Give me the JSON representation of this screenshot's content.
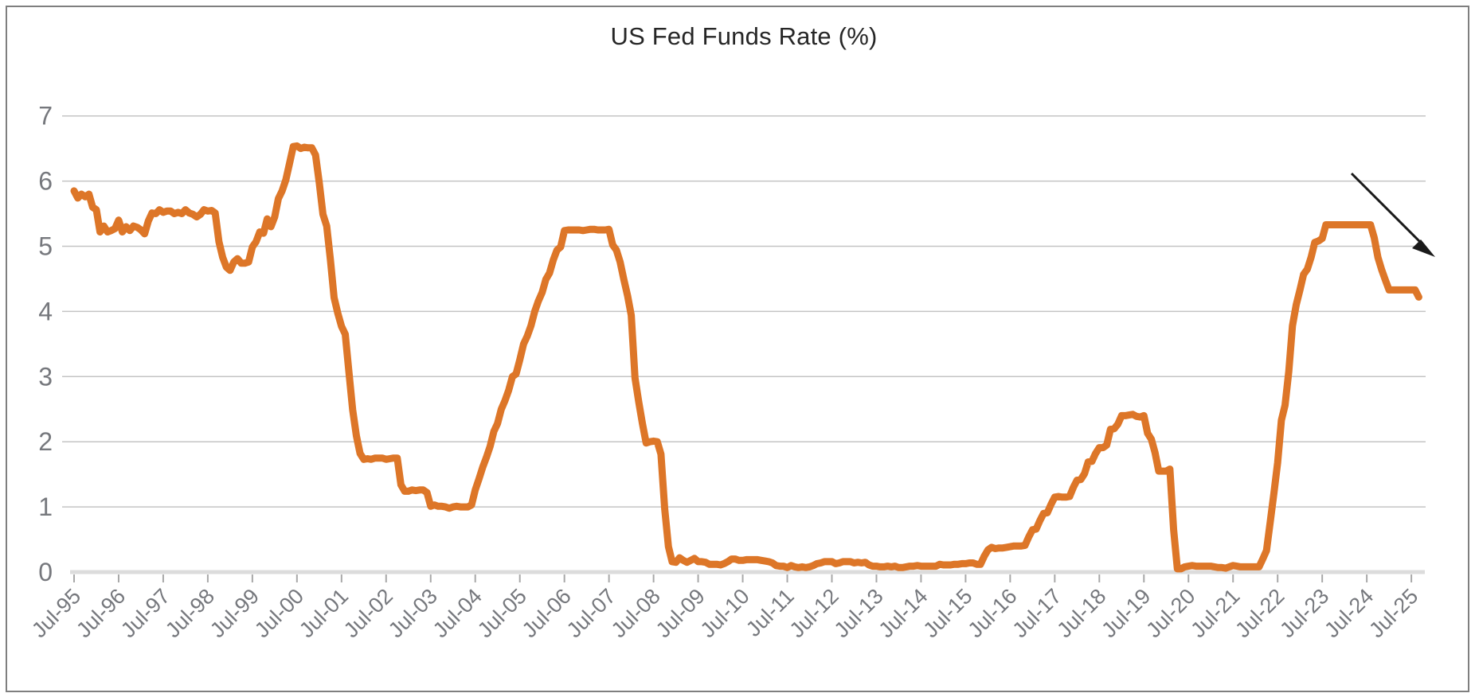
{
  "frame": {
    "background_color": "#FFFFFF",
    "border_color": "#7F7F7F"
  },
  "chart_data": {
    "type": "line",
    "title": "US Fed Funds Rate (%)",
    "xlabel": "",
    "ylabel": "",
    "legend": "none",
    "grid": "horizontal",
    "ylim": [
      0,
      7
    ],
    "y_ticks": [
      0,
      1,
      2,
      3,
      4,
      5,
      6,
      7
    ],
    "x_range": [
      "Jul-1995",
      "Sep-2025"
    ],
    "x_tick_labels": [
      "Jul-95",
      "Jul-96",
      "Jul-97",
      "Jul-98",
      "Jul-99",
      "Jul-00",
      "Jul-01",
      "Jul-02",
      "Jul-03",
      "Jul-04",
      "Jul-05",
      "Jul-06",
      "Jul-07",
      "Jul-08",
      "Jul-09",
      "Jul-10",
      "Jul-11",
      "Jul-12",
      "Jul-13",
      "Jul-14",
      "Jul-15",
      "Jul-16",
      "Jul-17",
      "Jul-18",
      "Jul-19",
      "Jul-20",
      "Jul-21",
      "Jul-22",
      "Jul-23",
      "Jul-24",
      "Jul-25"
    ],
    "colors": {
      "line": "#DD7628",
      "gridline": "#C4C4C4",
      "axis_line": "#DCDCDC",
      "tick": "#A8A8A8",
      "tick_label": "#76787D",
      "title": "#262626",
      "arrow": "#1A1A1A"
    },
    "annotations": [
      {
        "type": "arrow",
        "direction": "down-right",
        "color": "#1A1A1A",
        "location": "upper-right",
        "meaning": "recent decline in the fed funds rate"
      }
    ],
    "series": [
      {
        "name": "US Fed Funds Rate (%)",
        "color": "#DD7628",
        "start": "Jul-1995",
        "frequency": "monthly",
        "values": [
          5.85,
          5.74,
          5.8,
          5.76,
          5.8,
          5.6,
          5.56,
          5.22,
          5.31,
          5.22,
          5.24,
          5.27,
          5.4,
          5.22,
          5.3,
          5.24,
          5.31,
          5.29,
          5.25,
          5.19,
          5.39,
          5.51,
          5.5,
          5.56,
          5.52,
          5.54,
          5.54,
          5.5,
          5.52,
          5.5,
          5.56,
          5.51,
          5.49,
          5.45,
          5.49,
          5.56,
          5.54,
          5.55,
          5.51,
          5.07,
          4.83,
          4.68,
          4.63,
          4.76,
          4.81,
          4.74,
          4.74,
          4.76,
          4.99,
          5.07,
          5.22,
          5.2,
          5.42,
          5.3,
          5.45,
          5.73,
          5.85,
          6.02,
          6.27,
          6.53,
          6.54,
          6.5,
          6.52,
          6.51,
          6.51,
          6.4,
          5.98,
          5.49,
          5.31,
          4.8,
          4.21,
          3.97,
          3.77,
          3.65,
          3.07,
          2.49,
          2.09,
          1.82,
          1.73,
          1.74,
          1.73,
          1.75,
          1.75,
          1.75,
          1.73,
          1.74,
          1.75,
          1.75,
          1.34,
          1.24,
          1.24,
          1.26,
          1.25,
          1.26,
          1.26,
          1.22,
          1.01,
          1.03,
          1.01,
          1.01,
          1.0,
          0.98,
          1.0,
          1.01,
          1.0,
          1.0,
          1.0,
          1.03,
          1.26,
          1.43,
          1.61,
          1.76,
          1.93,
          2.16,
          2.28,
          2.5,
          2.63,
          2.79,
          3.0,
          3.04,
          3.26,
          3.5,
          3.62,
          3.78,
          4.0,
          4.16,
          4.29,
          4.49,
          4.59,
          4.79,
          4.94,
          4.99,
          5.24,
          5.25,
          5.25,
          5.25,
          5.25,
          5.24,
          5.25,
          5.26,
          5.26,
          5.25,
          5.25,
          5.25,
          5.26,
          5.02,
          4.94,
          4.76,
          4.49,
          4.24,
          3.94,
          2.98,
          2.61,
          2.28,
          1.98,
          2.0,
          2.01,
          2.0,
          1.81,
          0.97,
          0.39,
          0.16,
          0.15,
          0.22,
          0.18,
          0.15,
          0.18,
          0.21,
          0.16,
          0.16,
          0.15,
          0.12,
          0.12,
          0.12,
          0.11,
          0.13,
          0.16,
          0.2,
          0.2,
          0.18,
          0.18,
          0.19,
          0.19,
          0.19,
          0.19,
          0.18,
          0.17,
          0.16,
          0.14,
          0.1,
          0.09,
          0.09,
          0.07,
          0.1,
          0.08,
          0.07,
          0.08,
          0.07,
          0.08,
          0.1,
          0.13,
          0.14,
          0.16,
          0.16,
          0.16,
          0.13,
          0.14,
          0.16,
          0.16,
          0.16,
          0.14,
          0.15,
          0.14,
          0.15,
          0.11,
          0.09,
          0.09,
          0.08,
          0.08,
          0.09,
          0.08,
          0.09,
          0.07,
          0.07,
          0.08,
          0.09,
          0.09,
          0.1,
          0.09,
          0.09,
          0.09,
          0.09,
          0.09,
          0.12,
          0.11,
          0.11,
          0.11,
          0.12,
          0.12,
          0.13,
          0.13,
          0.14,
          0.14,
          0.12,
          0.12,
          0.24,
          0.34,
          0.38,
          0.36,
          0.37,
          0.37,
          0.38,
          0.39,
          0.4,
          0.4,
          0.4,
          0.41,
          0.54,
          0.65,
          0.66,
          0.79,
          0.9,
          0.91,
          1.04,
          1.15,
          1.16,
          1.15,
          1.15,
          1.16,
          1.3,
          1.41,
          1.42,
          1.51,
          1.69,
          1.7,
          1.82,
          1.91,
          1.91,
          1.95,
          2.19,
          2.2,
          2.27,
          2.4,
          2.4,
          2.41,
          2.42,
          2.39,
          2.38,
          2.4,
          2.13,
          2.04,
          1.83,
          1.55,
          1.55,
          1.55,
          1.58,
          0.65,
          0.05,
          0.05,
          0.08,
          0.09,
          0.1,
          0.09,
          0.09,
          0.09,
          0.09,
          0.09,
          0.08,
          0.07,
          0.07,
          0.06,
          0.08,
          0.1,
          0.09,
          0.08,
          0.08,
          0.08,
          0.08,
          0.08,
          0.08,
          0.2,
          0.33,
          0.77,
          1.21,
          1.68,
          2.33,
          2.56,
          3.08,
          3.78,
          4.1,
          4.33,
          4.57,
          4.65,
          4.83,
          5.06,
          5.08,
          5.12,
          5.33,
          5.33,
          5.33,
          5.33,
          5.33,
          5.33,
          5.33,
          5.33,
          5.33,
          5.33,
          5.33,
          5.33,
          5.33,
          5.13,
          4.83,
          4.64,
          4.48,
          4.33,
          4.33,
          4.33,
          4.33,
          4.33,
          4.33,
          4.33,
          4.33,
          4.22
        ]
      }
    ]
  }
}
